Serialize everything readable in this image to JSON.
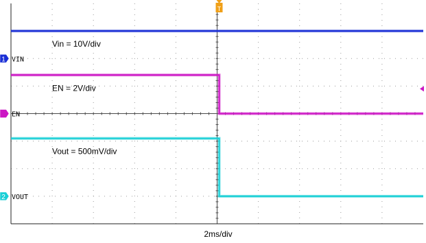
{
  "chart_data": {
    "type": "line",
    "title": "",
    "xlabel": "2ms/div",
    "ylabel": "",
    "x_unit": "div",
    "grid": true,
    "horizontal_divisions": 10,
    "vertical_divisions": 8,
    "trigger_time_div": 5.05,
    "series": [
      {
        "name": "VIN",
        "marker_label": "1",
        "scale_label": "Vin = 10V/div",
        "color": "#1a2fd6",
        "ground_div": 6.0,
        "x": [
          0,
          10
        ],
        "y": [
          7.0,
          7.0
        ]
      },
      {
        "name": "EN",
        "marker_label": "",
        "scale_label": "EN = 2V/div",
        "color": "#cc16c4",
        "ground_div": 4.0,
        "x": [
          0,
          5.05,
          5.05,
          10
        ],
        "y": [
          5.4,
          5.4,
          4.0,
          4.0
        ]
      },
      {
        "name": "VOUT",
        "marker_label": "2",
        "scale_label": "Vout = 500mV/div",
        "color": "#19cfd6",
        "ground_div": 1.0,
        "x": [
          0,
          5.05,
          5.05,
          10
        ],
        "y": [
          3.1,
          3.1,
          1.0,
          1.0
        ]
      }
    ]
  }
}
